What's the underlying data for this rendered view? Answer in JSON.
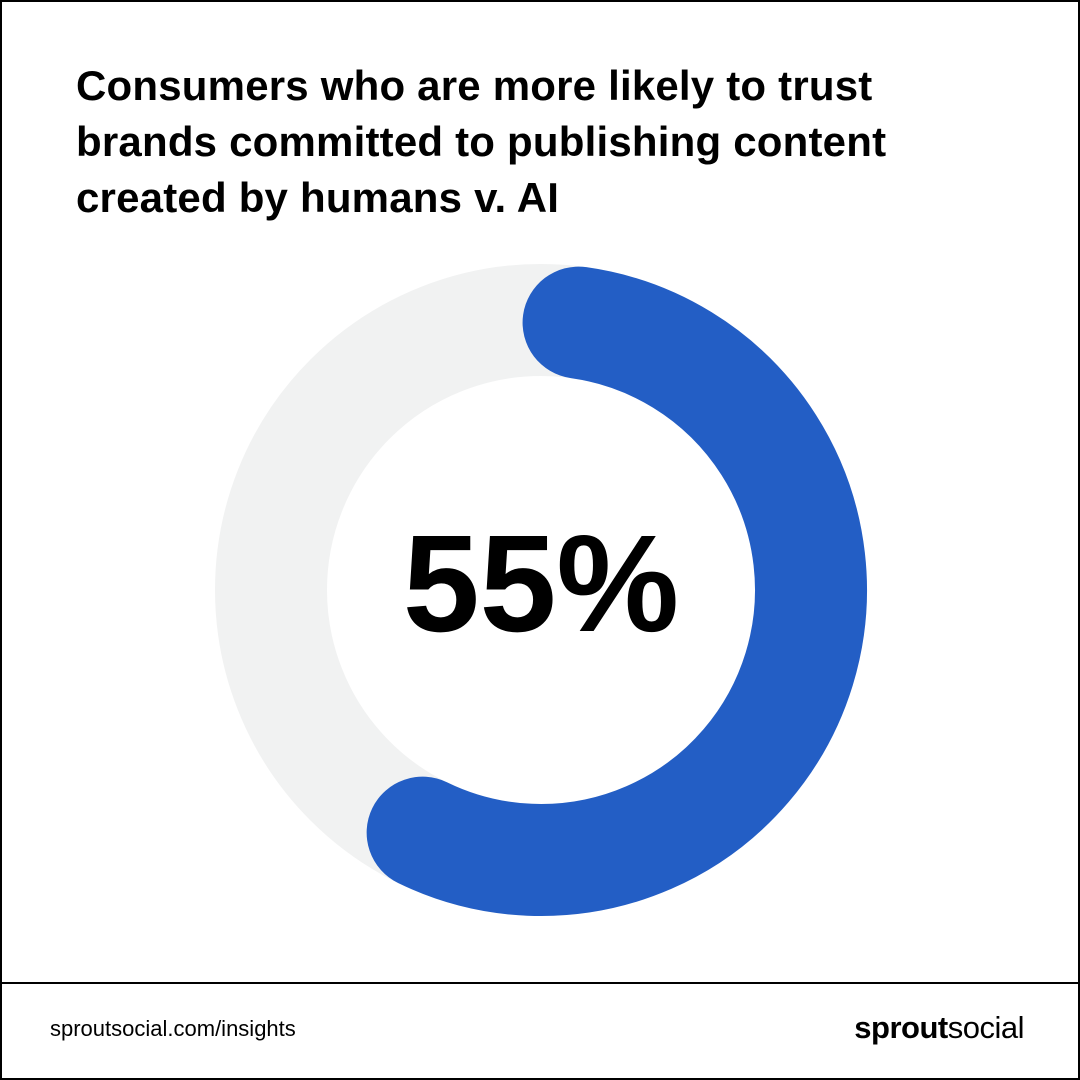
{
  "chart_data": {
    "type": "pie",
    "title": "Consumers who are more likely to trust brands committed to publishing content created by humans v. AI",
    "values": [
      55,
      45
    ],
    "center_label": "55%",
    "colors": {
      "highlight": "#235EC5",
      "track": "#F1F2F2"
    }
  },
  "footer": {
    "url": "sproutsocial.com/insights",
    "brand_primary": "sprout",
    "brand_secondary": "social"
  }
}
